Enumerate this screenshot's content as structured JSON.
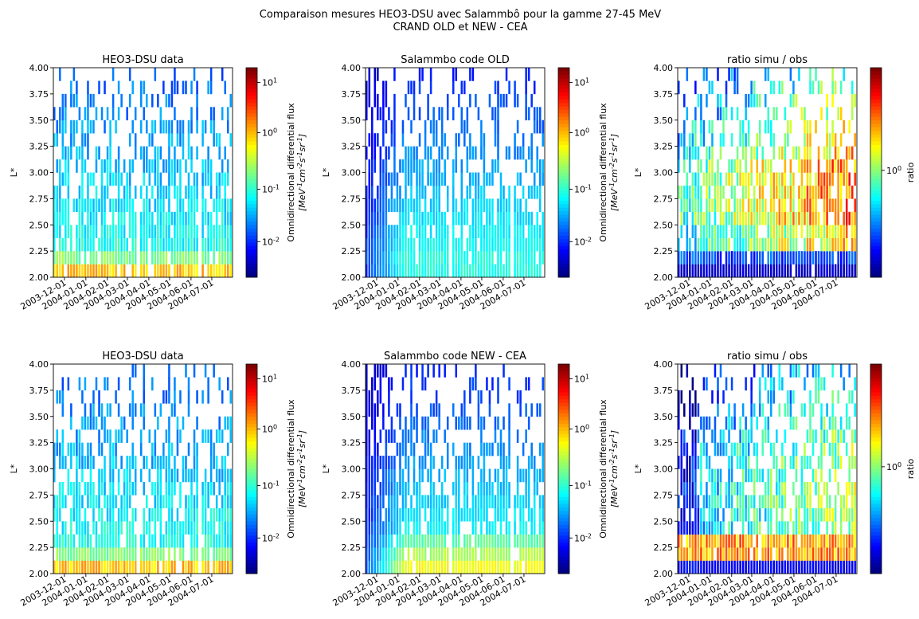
{
  "figure": {
    "suptitle_line1": "Comparaison mesures HEO3-DSU avec Salammbô pour la gamme 27-45 MeV",
    "suptitle_line2": "CRAND OLD et NEW - CEA"
  },
  "chart_data": [
    {
      "id": "r0c0",
      "type": "heatmap",
      "title": "HEO3-DSU data",
      "xlabel": "",
      "ylabel": "L*",
      "x_ticks": [
        "2003-12-01",
        "2004-01-01",
        "2004-02-01",
        "2004-03-01",
        "2004-04-01",
        "2004-05-01",
        "2004-06-01",
        "2004-07-01"
      ],
      "y_ticks": [
        "2.00",
        "2.25",
        "2.50",
        "2.75",
        "3.00",
        "3.25",
        "3.50",
        "3.75",
        "4.00"
      ],
      "ylim": [
        2.0,
        4.0
      ],
      "xlim": [
        "2003-11-15",
        "2004-07-31"
      ],
      "colormap": "jet",
      "color_scale": "log",
      "colorbar_ticks": [
        "10^{1}",
        "10^{0}",
        "10^{-1}",
        "10^{-2}"
      ],
      "colorbar_label": "Omnidirectional differential flux [MeV^{-1}cm^{-2}s^{-1}sr^{-1}]",
      "pattern": "data"
    },
    {
      "id": "r0c1",
      "type": "heatmap",
      "title": "Salammbo code OLD",
      "xlabel": "",
      "ylabel": "L*",
      "x_ticks": [
        "2003-12-01",
        "2004-01-01",
        "2004-02-01",
        "2004-03-01",
        "2004-04-01",
        "2004-05-01",
        "2004-06-01",
        "2004-07-01"
      ],
      "y_ticks": [
        "2.00",
        "2.25",
        "2.50",
        "2.75",
        "3.00",
        "3.25",
        "3.50",
        "3.75",
        "4.00"
      ],
      "ylim": [
        2.0,
        4.0
      ],
      "xlim": [
        "2003-11-15",
        "2004-07-31"
      ],
      "colormap": "jet",
      "color_scale": "log",
      "colorbar_ticks": [
        "10^{1}",
        "10^{0}",
        "10^{-1}",
        "10^{-2}"
      ],
      "colorbar_label": "Omnidirectional differential flux [MeV^{-1}cm^{-2}s^{-1}sr^{-1}]",
      "pattern": "old"
    },
    {
      "id": "r0c2",
      "type": "heatmap",
      "title": "ratio simu / obs",
      "xlabel": "",
      "ylabel": "L*",
      "x_ticks": [
        "2003-12-01",
        "2004-01-01",
        "2004-02-01",
        "2004-03-01",
        "2004-04-01",
        "2004-05-01",
        "2004-06-01",
        "2004-07-01"
      ],
      "y_ticks": [
        "2.00",
        "2.25",
        "2.50",
        "2.75",
        "3.00",
        "3.25",
        "3.50",
        "3.75",
        "4.00"
      ],
      "ylim": [
        2.0,
        4.0
      ],
      "xlim": [
        "2003-11-15",
        "2004-07-31"
      ],
      "colormap": "jet",
      "color_scale": "log",
      "colorbar_ticks": [
        "10^{0}"
      ],
      "colorbar_label": "ratio",
      "pattern": "ratio_old"
    },
    {
      "id": "r1c0",
      "type": "heatmap",
      "title": "HEO3-DSU data",
      "xlabel": "",
      "ylabel": "L*",
      "x_ticks": [
        "2003-12-01",
        "2004-01-01",
        "2004-02-01",
        "2004-03-01",
        "2004-04-01",
        "2004-05-01",
        "2004-06-01",
        "2004-07-01"
      ],
      "y_ticks": [
        "2.00",
        "2.25",
        "2.50",
        "2.75",
        "3.00",
        "3.25",
        "3.50",
        "3.75",
        "4.00"
      ],
      "ylim": [
        2.0,
        4.0
      ],
      "xlim": [
        "2003-11-15",
        "2004-07-31"
      ],
      "colormap": "jet",
      "color_scale": "log",
      "colorbar_ticks": [
        "10^{1}",
        "10^{0}",
        "10^{-1}",
        "10^{-2}"
      ],
      "colorbar_label": "Omnidirectional differential flux [MeV^{-1}cm^{-2}s^{-1}sr^{-1}]",
      "pattern": "data"
    },
    {
      "id": "r1c1",
      "type": "heatmap",
      "title": "Salammbo code NEW - CEA",
      "xlabel": "",
      "ylabel": "L*",
      "x_ticks": [
        "2003-12-01",
        "2004-01-01",
        "2004-02-01",
        "2004-03-01",
        "2004-04-01",
        "2004-05-01",
        "2004-06-01",
        "2004-07-01"
      ],
      "y_ticks": [
        "2.00",
        "2.25",
        "2.50",
        "2.75",
        "3.00",
        "3.25",
        "3.50",
        "3.75",
        "4.00"
      ],
      "ylim": [
        2.0,
        4.0
      ],
      "xlim": [
        "2003-11-15",
        "2004-07-31"
      ],
      "colormap": "jet",
      "color_scale": "log",
      "colorbar_ticks": [
        "10^{1}",
        "10^{0}",
        "10^{-1}",
        "10^{-2}"
      ],
      "colorbar_label": "Omnidirectional differential flux [MeV^{-1}cm^{-2}s^{-1}sr^{-1}]",
      "pattern": "new"
    },
    {
      "id": "r1c2",
      "type": "heatmap",
      "title": "ratio simu / obs",
      "xlabel": "",
      "ylabel": "L*",
      "x_ticks": [
        "2003-12-01",
        "2004-01-01",
        "2004-02-01",
        "2004-03-01",
        "2004-04-01",
        "2004-05-01",
        "2004-06-01",
        "2004-07-01"
      ],
      "y_ticks": [
        "2.00",
        "2.25",
        "2.50",
        "2.75",
        "3.00",
        "3.25",
        "3.50",
        "3.75",
        "4.00"
      ],
      "ylim": [
        2.0,
        4.0
      ],
      "xlim": [
        "2003-11-15",
        "2004-07-31"
      ],
      "colormap": "jet",
      "color_scale": "log",
      "colorbar_ticks": [
        "10^{0}"
      ],
      "colorbar_label": "ratio",
      "pattern": "ratio_new"
    }
  ]
}
